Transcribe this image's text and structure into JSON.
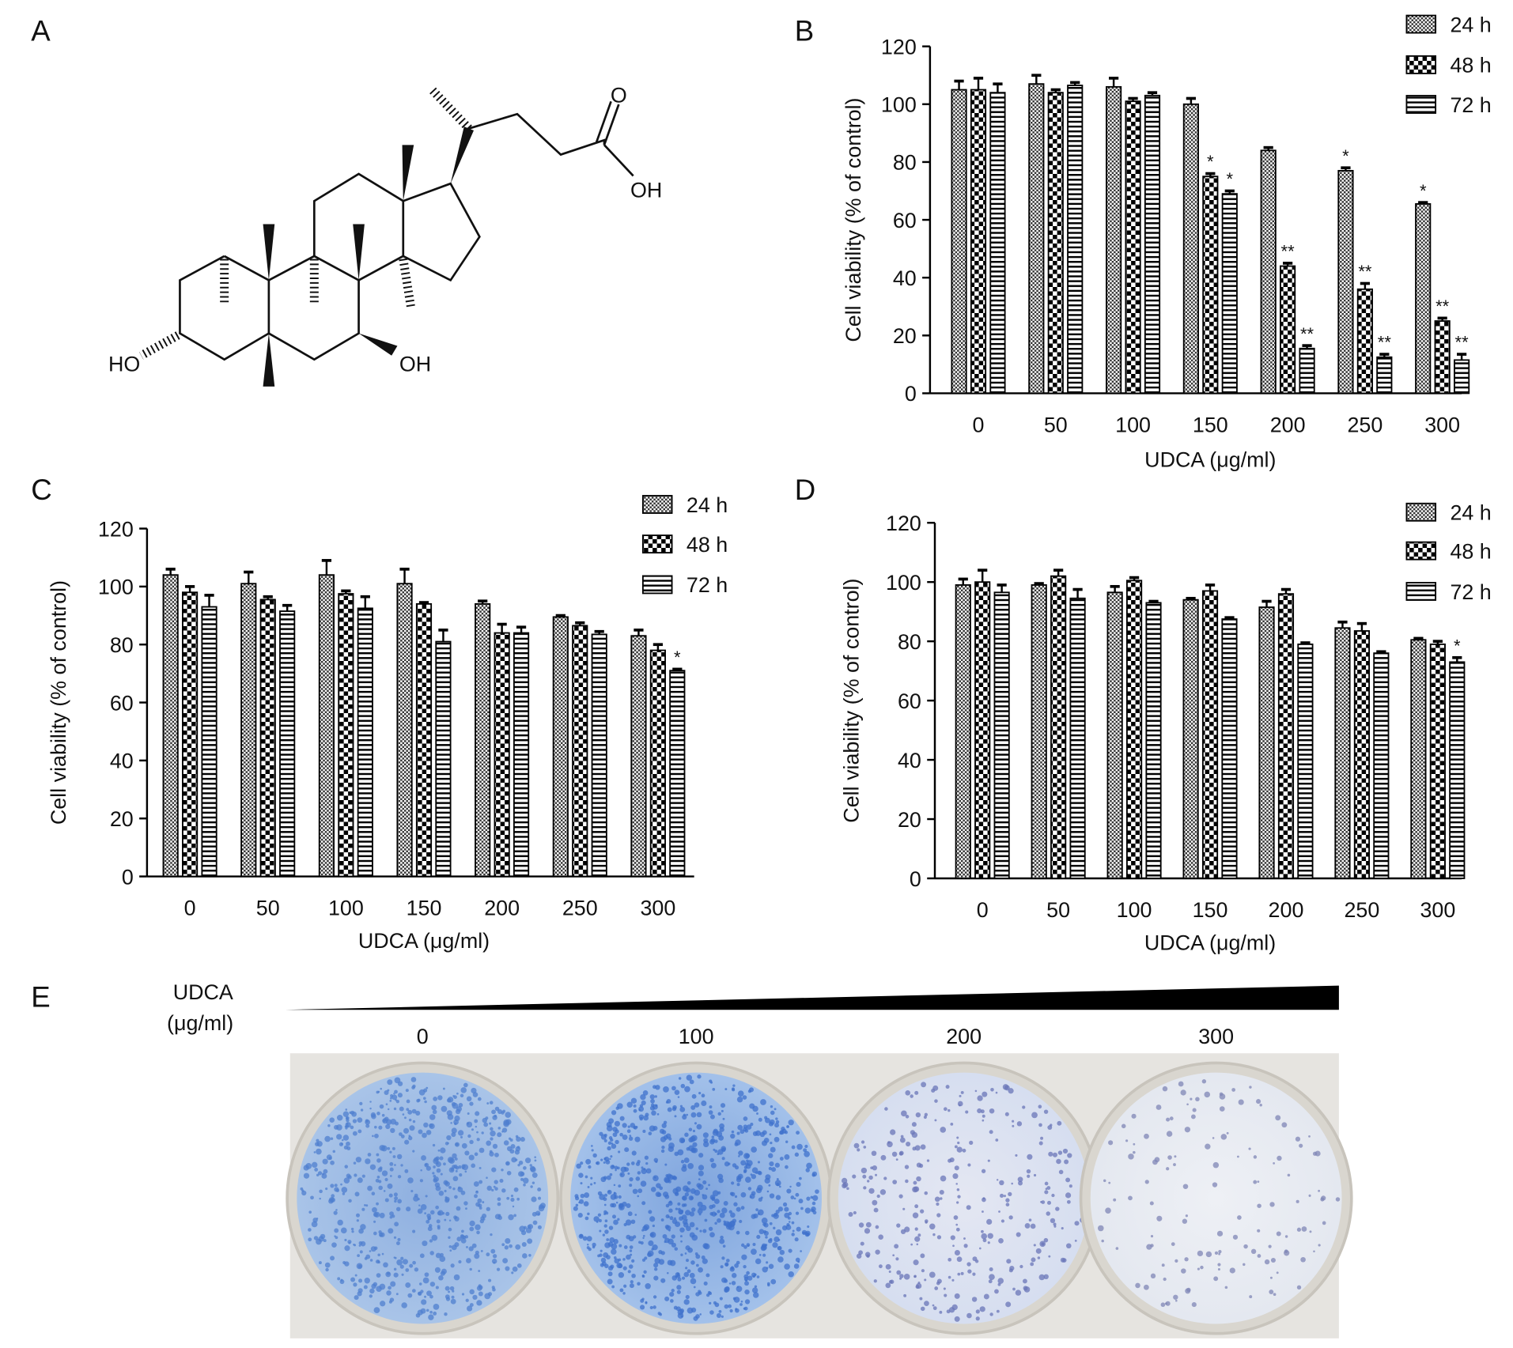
{
  "panel_labels": [
    "A",
    "B",
    "C",
    "D",
    "E"
  ],
  "molecule": {
    "atoms": [
      "O",
      "OH",
      "HO",
      "OH"
    ]
  },
  "chart_data": [
    {
      "type": "bar",
      "ylabel": "Cell viability (% of control)",
      "xlabel": "UDCA (μg/ml)",
      "categories": [
        0,
        50,
        100,
        150,
        200,
        250,
        300
      ],
      "ylim": [
        0,
        120
      ],
      "yticks": [
        0,
        20,
        40,
        60,
        80,
        100,
        120
      ],
      "legend": "top-right",
      "series": [
        {
          "name": "24 h",
          "color": "#000000",
          "pattern": "crosshatch",
          "values": [
            105,
            107,
            106,
            100,
            84,
            77,
            65.5
          ],
          "errors": [
            3,
            3,
            3,
            2,
            1,
            1,
            0.5
          ],
          "significance": [
            null,
            null,
            null,
            null,
            null,
            "*",
            "*"
          ]
        },
        {
          "name": "48 h",
          "color": "#000000",
          "pattern": "checker",
          "values": [
            105,
            104,
            101,
            75,
            44,
            36,
            25
          ],
          "errors": [
            4,
            1,
            1,
            1,
            1,
            2,
            1
          ],
          "significance": [
            null,
            null,
            null,
            "*",
            "**",
            "**",
            "**"
          ]
        },
        {
          "name": "72 h",
          "color": "#000000",
          "pattern": "hstripes",
          "values": [
            104,
            106.5,
            103,
            69,
            15.5,
            12.5,
            11.5
          ],
          "errors": [
            3,
            1,
            1,
            1,
            1,
            1,
            2
          ],
          "significance": [
            null,
            null,
            null,
            "*",
            "**",
            "**",
            "**"
          ]
        }
      ]
    },
    {
      "type": "bar",
      "ylabel": "Cell viability (% of control)",
      "xlabel": "UDCA (μg/ml)",
      "categories": [
        0,
        50,
        100,
        150,
        200,
        250,
        300
      ],
      "ylim": [
        0,
        120
      ],
      "yticks": [
        0,
        20,
        40,
        60,
        80,
        100,
        120
      ],
      "legend": "top-right",
      "series": [
        {
          "name": "24 h",
          "color": "#000000",
          "pattern": "crosshatch",
          "values": [
            104,
            101,
            104,
            101,
            94,
            89.5,
            83
          ],
          "errors": [
            2,
            4,
            5,
            5,
            1,
            0.5,
            2
          ],
          "significance": [
            null,
            null,
            null,
            null,
            null,
            null,
            null
          ]
        },
        {
          "name": "48 h",
          "color": "#000000",
          "pattern": "checker",
          "values": [
            98,
            95.5,
            97.5,
            94,
            84,
            86.5,
            78
          ],
          "errors": [
            2,
            1,
            1,
            0.5,
            3,
            1,
            2
          ],
          "significance": [
            null,
            null,
            null,
            null,
            null,
            null,
            null
          ]
        },
        {
          "name": "72 h",
          "color": "#000000",
          "pattern": "hstripes",
          "values": [
            93,
            91.5,
            92.5,
            81,
            84,
            83.5,
            71
          ],
          "errors": [
            4,
            2,
            4,
            4,
            2,
            1,
            0.5
          ],
          "significance": [
            null,
            null,
            null,
            null,
            null,
            null,
            "*"
          ]
        }
      ]
    },
    {
      "type": "bar",
      "ylabel": "Cell viability (% of control)",
      "xlabel": "UDCA (μg/ml)",
      "categories": [
        0,
        50,
        100,
        150,
        200,
        250,
        300
      ],
      "ylim": [
        0,
        120
      ],
      "yticks": [
        0,
        20,
        40,
        60,
        80,
        100,
        120
      ],
      "legend": "top-right",
      "series": [
        {
          "name": "24 h",
          "color": "#000000",
          "pattern": "crosshatch",
          "values": [
            99,
            99,
            96.5,
            94,
            91.5,
            84.5,
            80.5
          ],
          "errors": [
            2,
            0.5,
            2,
            0.5,
            2,
            2,
            0.5
          ],
          "significance": [
            null,
            null,
            null,
            null,
            null,
            null,
            null
          ]
        },
        {
          "name": "48 h",
          "color": "#000000",
          "pattern": "checker",
          "values": [
            100,
            102,
            100.5,
            97,
            96,
            83.5,
            79
          ],
          "errors": [
            4,
            2,
            1,
            2,
            1.5,
            2.5,
            1
          ],
          "significance": [
            null,
            null,
            null,
            null,
            null,
            null,
            null
          ]
        },
        {
          "name": "72 h",
          "color": "#000000",
          "pattern": "hstripes",
          "values": [
            96.5,
            94.5,
            93,
            87.5,
            79,
            76,
            73
          ],
          "errors": [
            2.5,
            3,
            0.5,
            0.5,
            0.5,
            0.5,
            1.5
          ],
          "significance": [
            null,
            null,
            null,
            null,
            null,
            null,
            "*"
          ]
        }
      ]
    }
  ],
  "colony_assay": {
    "title": "UDCA",
    "unit": "(μg/ml)",
    "doses": [
      0,
      100,
      200,
      300
    ]
  }
}
